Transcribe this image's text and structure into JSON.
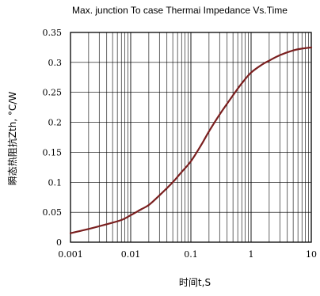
{
  "chart_data": {
    "type": "line",
    "title": "Max. junction To case Thermai Impedance Vs.Time",
    "xlabel": "时间t,S",
    "ylabel": "瞬态热阻抗Zth, °C/W",
    "x_scale": "log",
    "xlim": [
      0.001,
      10
    ],
    "ylim": [
      0,
      0.35
    ],
    "x_ticks": [
      "0.001",
      "0.01",
      "0.1",
      "1",
      "10"
    ],
    "y_ticks": [
      "0",
      "0.05",
      "0.1",
      "0.15",
      "0.2",
      "0.25",
      "0.3",
      "0.35"
    ],
    "grid": true,
    "line_color": "#7a1f1f",
    "series": [
      {
        "x": [
          0.001,
          0.002,
          0.004,
          0.007,
          0.01,
          0.015,
          0.02,
          0.03,
          0.05,
          0.07,
          0.1,
          0.15,
          0.2,
          0.3,
          0.5,
          0.7,
          1,
          1.5,
          2,
          3,
          5,
          7,
          10
        ],
        "y": [
          0.015,
          0.022,
          0.03,
          0.037,
          0.045,
          0.055,
          0.062,
          0.078,
          0.1,
          0.117,
          0.135,
          0.163,
          0.185,
          0.213,
          0.245,
          0.265,
          0.283,
          0.296,
          0.303,
          0.312,
          0.32,
          0.323,
          0.325
        ]
      }
    ]
  }
}
